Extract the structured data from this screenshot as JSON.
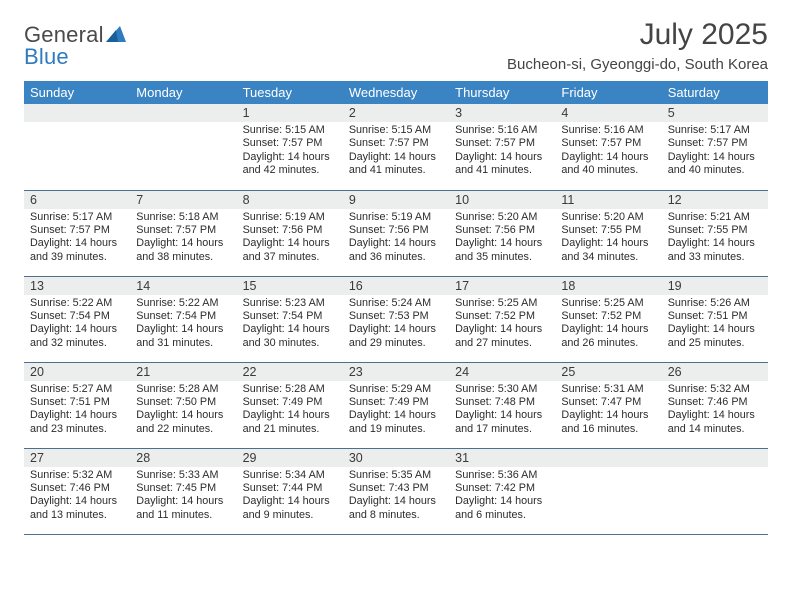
{
  "brand": {
    "word1": "General",
    "word2": "Blue"
  },
  "title": "July 2025",
  "location": "Bucheon-si, Gyeonggi-do, South Korea",
  "colors": {
    "header_bg": "#3b84c4",
    "header_fg": "#ffffff",
    "daynum_bg": "#eceded",
    "rule": "#4a6f8f",
    "brand_blue": "#2f7bbf",
    "text": "#2c2c2c"
  },
  "weekdays": [
    "Sunday",
    "Monday",
    "Tuesday",
    "Wednesday",
    "Thursday",
    "Friday",
    "Saturday"
  ],
  "weeks": [
    [
      null,
      null,
      {
        "n": "1",
        "sr": "5:15 AM",
        "ss": "7:57 PM",
        "dl": "14 hours and 42 minutes."
      },
      {
        "n": "2",
        "sr": "5:15 AM",
        "ss": "7:57 PM",
        "dl": "14 hours and 41 minutes."
      },
      {
        "n": "3",
        "sr": "5:16 AM",
        "ss": "7:57 PM",
        "dl": "14 hours and 41 minutes."
      },
      {
        "n": "4",
        "sr": "5:16 AM",
        "ss": "7:57 PM",
        "dl": "14 hours and 40 minutes."
      },
      {
        "n": "5",
        "sr": "5:17 AM",
        "ss": "7:57 PM",
        "dl": "14 hours and 40 minutes."
      }
    ],
    [
      {
        "n": "6",
        "sr": "5:17 AM",
        "ss": "7:57 PM",
        "dl": "14 hours and 39 minutes."
      },
      {
        "n": "7",
        "sr": "5:18 AM",
        "ss": "7:57 PM",
        "dl": "14 hours and 38 minutes."
      },
      {
        "n": "8",
        "sr": "5:19 AM",
        "ss": "7:56 PM",
        "dl": "14 hours and 37 minutes."
      },
      {
        "n": "9",
        "sr": "5:19 AM",
        "ss": "7:56 PM",
        "dl": "14 hours and 36 minutes."
      },
      {
        "n": "10",
        "sr": "5:20 AM",
        "ss": "7:56 PM",
        "dl": "14 hours and 35 minutes."
      },
      {
        "n": "11",
        "sr": "5:20 AM",
        "ss": "7:55 PM",
        "dl": "14 hours and 34 minutes."
      },
      {
        "n": "12",
        "sr": "5:21 AM",
        "ss": "7:55 PM",
        "dl": "14 hours and 33 minutes."
      }
    ],
    [
      {
        "n": "13",
        "sr": "5:22 AM",
        "ss": "7:54 PM",
        "dl": "14 hours and 32 minutes."
      },
      {
        "n": "14",
        "sr": "5:22 AM",
        "ss": "7:54 PM",
        "dl": "14 hours and 31 minutes."
      },
      {
        "n": "15",
        "sr": "5:23 AM",
        "ss": "7:54 PM",
        "dl": "14 hours and 30 minutes."
      },
      {
        "n": "16",
        "sr": "5:24 AM",
        "ss": "7:53 PM",
        "dl": "14 hours and 29 minutes."
      },
      {
        "n": "17",
        "sr": "5:25 AM",
        "ss": "7:52 PM",
        "dl": "14 hours and 27 minutes."
      },
      {
        "n": "18",
        "sr": "5:25 AM",
        "ss": "7:52 PM",
        "dl": "14 hours and 26 minutes."
      },
      {
        "n": "19",
        "sr": "5:26 AM",
        "ss": "7:51 PM",
        "dl": "14 hours and 25 minutes."
      }
    ],
    [
      {
        "n": "20",
        "sr": "5:27 AM",
        "ss": "7:51 PM",
        "dl": "14 hours and 23 minutes."
      },
      {
        "n": "21",
        "sr": "5:28 AM",
        "ss": "7:50 PM",
        "dl": "14 hours and 22 minutes."
      },
      {
        "n": "22",
        "sr": "5:28 AM",
        "ss": "7:49 PM",
        "dl": "14 hours and 21 minutes."
      },
      {
        "n": "23",
        "sr": "5:29 AM",
        "ss": "7:49 PM",
        "dl": "14 hours and 19 minutes."
      },
      {
        "n": "24",
        "sr": "5:30 AM",
        "ss": "7:48 PM",
        "dl": "14 hours and 17 minutes."
      },
      {
        "n": "25",
        "sr": "5:31 AM",
        "ss": "7:47 PM",
        "dl": "14 hours and 16 minutes."
      },
      {
        "n": "26",
        "sr": "5:32 AM",
        "ss": "7:46 PM",
        "dl": "14 hours and 14 minutes."
      }
    ],
    [
      {
        "n": "27",
        "sr": "5:32 AM",
        "ss": "7:46 PM",
        "dl": "14 hours and 13 minutes."
      },
      {
        "n": "28",
        "sr": "5:33 AM",
        "ss": "7:45 PM",
        "dl": "14 hours and 11 minutes."
      },
      {
        "n": "29",
        "sr": "5:34 AM",
        "ss": "7:44 PM",
        "dl": "14 hours and 9 minutes."
      },
      {
        "n": "30",
        "sr": "5:35 AM",
        "ss": "7:43 PM",
        "dl": "14 hours and 8 minutes."
      },
      {
        "n": "31",
        "sr": "5:36 AM",
        "ss": "7:42 PM",
        "dl": "14 hours and 6 minutes."
      },
      null,
      null
    ]
  ],
  "labels": {
    "sunrise": "Sunrise:",
    "sunset": "Sunset:",
    "daylight": "Daylight:"
  }
}
